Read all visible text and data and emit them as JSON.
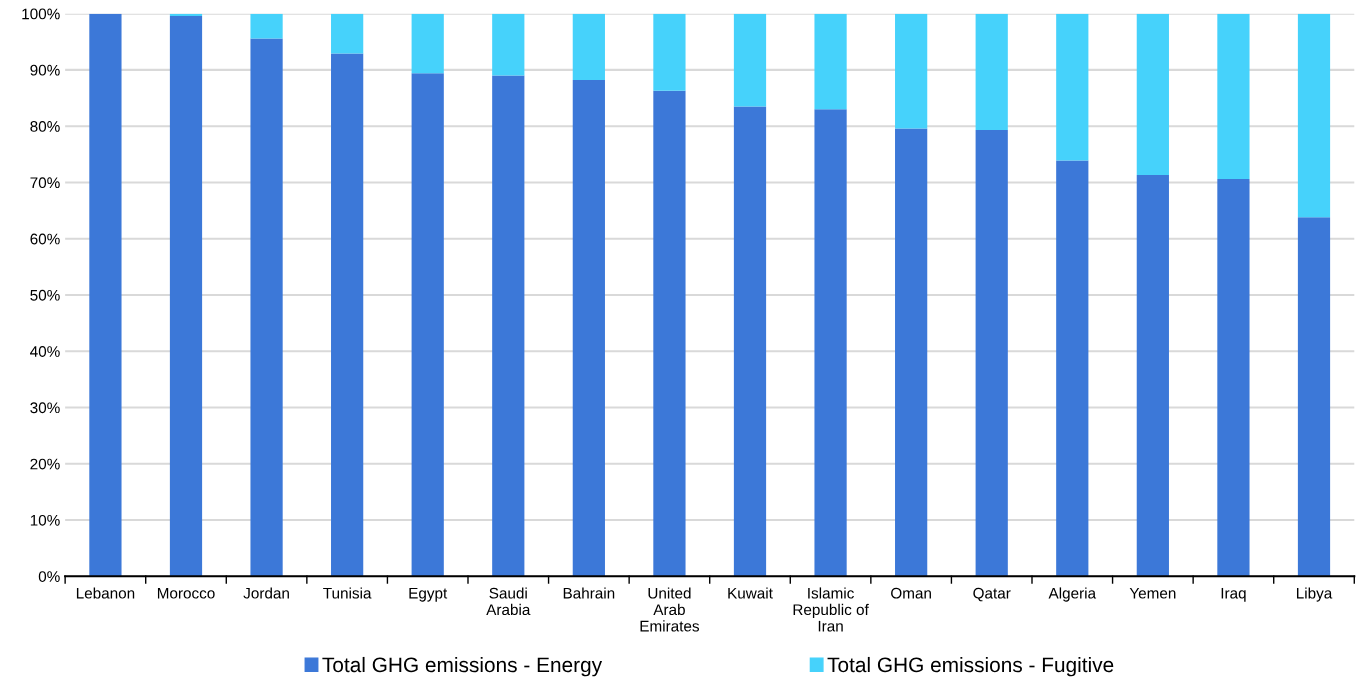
{
  "chart_data": {
    "type": "bar",
    "stacked": true,
    "categories": [
      "Lebanon",
      "Morocco",
      "Jordan",
      "Tunisia",
      "Egypt",
      "Saudi\nArabia",
      "Bahrain",
      "United\nArab\nEmirates",
      "Kuwait",
      "Islamic\nRepublic of\nIran",
      "Oman",
      "Qatar",
      "Algeria",
      "Yemen",
      "Iraq",
      "Libya"
    ],
    "series": [
      {
        "name": "Total GHG emissions - Energy",
        "color": "#3c78d8",
        "values": [
          100,
          99.6,
          95.6,
          92.9,
          89.4,
          89.0,
          88.2,
          86.3,
          83.5,
          83.0,
          79.6,
          79.3,
          73.9,
          71.3,
          70.6,
          63.8
        ]
      },
      {
        "name": "Total GHG emissions - Fugitive",
        "color": "#46d2fb",
        "values": [
          0,
          0.4,
          4.4,
          7.1,
          10.6,
          11.0,
          11.8,
          13.7,
          16.5,
          17.0,
          20.4,
          20.7,
          26.1,
          28.7,
          29.4,
          36.2
        ]
      }
    ],
    "ylim": [
      0,
      100
    ],
    "yticks": [
      {
        "value": 0,
        "label": "0%"
      },
      {
        "value": 10,
        "label": "10%"
      },
      {
        "value": 20,
        "label": "20%"
      },
      {
        "value": 30,
        "label": "30%"
      },
      {
        "value": 40,
        "label": "40%"
      },
      {
        "value": 50,
        "label": "50%"
      },
      {
        "value": 60,
        "label": "60%"
      },
      {
        "value": 70,
        "label": "70%"
      },
      {
        "value": 80,
        "label": "80%"
      },
      {
        "value": 90,
        "label": "90%"
      },
      {
        "value": 100,
        "label": "100%"
      }
    ],
    "grid": "y",
    "legend": "bottom"
  }
}
